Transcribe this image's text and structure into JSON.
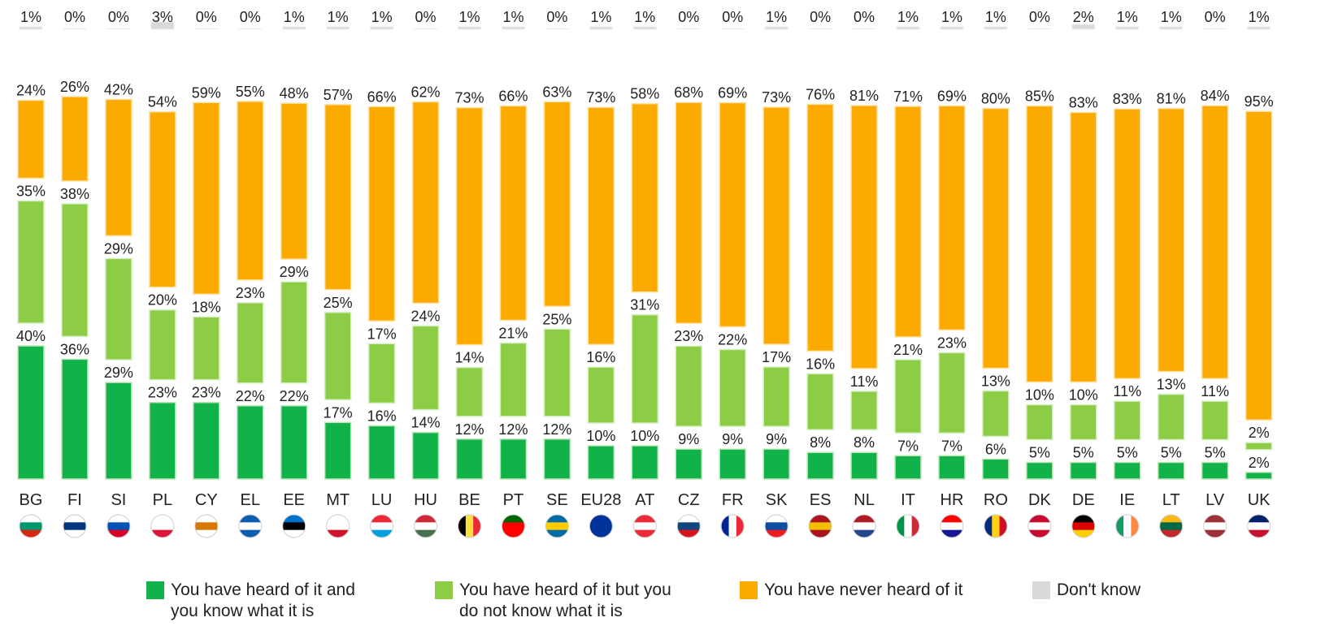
{
  "chart_data": {
    "type": "bar",
    "stacked": false,
    "categories": [
      "BG",
      "FI",
      "SI",
      "PL",
      "CY",
      "EL",
      "EE",
      "MT",
      "LU",
      "HU",
      "BE",
      "PT",
      "SE",
      "EU28",
      "AT",
      "CZ",
      "FR",
      "SK",
      "ES",
      "NL",
      "IT",
      "HR",
      "RO",
      "DK",
      "DE",
      "IE",
      "LT",
      "LV",
      "UK"
    ],
    "flags": [
      "bg",
      "fi",
      "si",
      "pl",
      "cy",
      "el",
      "ee",
      "mt",
      "lu",
      "hu",
      "be",
      "pt",
      "se",
      "eu",
      "at",
      "cz",
      "fr",
      "sk",
      "es",
      "nl",
      "it",
      "hr",
      "ro",
      "dk",
      "de",
      "ie",
      "lt",
      "lv",
      "uk"
    ],
    "series": [
      {
        "name": "You have heard of it and you know what it is",
        "color": "#12b24a",
        "values": [
          40,
          36,
          29,
          23,
          23,
          22,
          22,
          17,
          16,
          14,
          12,
          12,
          12,
          10,
          10,
          9,
          9,
          9,
          8,
          8,
          7,
          7,
          6,
          5,
          5,
          5,
          5,
          5,
          2
        ],
        "labels": [
          "40%",
          "36%",
          "29%",
          "23%",
          "23%",
          "22%",
          "22%",
          "17%",
          "16%",
          "14%",
          "12%",
          "12%",
          "12%",
          "10%",
          "10%",
          "9%",
          "9%",
          "9%",
          "8%",
          "8%",
          "7%",
          "7%",
          "6%",
          "5%",
          "5%",
          "5%",
          "5%",
          "5%",
          "2%"
        ]
      },
      {
        "name": "You have heard of it but you do not know what it is",
        "color": "#8dcc45",
        "values": [
          35,
          38,
          29,
          20,
          18,
          23,
          29,
          25,
          17,
          24,
          14,
          21,
          25,
          16,
          31,
          23,
          22,
          17,
          16,
          11,
          21,
          23,
          13,
          10,
          10,
          11,
          13,
          11,
          2
        ],
        "labels": [
          "35%",
          "38%",
          "29%",
          "20%",
          "18%",
          "23%",
          "29%",
          "25%",
          "17%",
          "24%",
          "14%",
          "21%",
          "25%",
          "16%",
          "31%",
          "23%",
          "22%",
          "17%",
          "16%",
          "11%",
          "21%",
          "23%",
          "13%",
          "10%",
          "10%",
          "11%",
          "13%",
          "11%",
          "2%"
        ]
      },
      {
        "name": "You have never heard of it",
        "color": "#fbab00",
        "values": [
          24,
          26,
          42,
          54,
          59,
          55,
          48,
          57,
          66,
          62,
          73,
          66,
          63,
          73,
          58,
          68,
          69,
          73,
          76,
          81,
          71,
          69,
          80,
          85,
          83,
          83,
          81,
          84,
          95
        ],
        "labels": [
          "24%",
          "26%",
          "42%",
          "54%",
          "59%",
          "55%",
          "48%",
          "57%",
          "66%",
          "62%",
          "73%",
          "66%",
          "63%",
          "73%",
          "58%",
          "68%",
          "69%",
          "73%",
          "76%",
          "81%",
          "71%",
          "69%",
          "80%",
          "85%",
          "83%",
          "83%",
          "81%",
          "84%",
          "95%"
        ]
      },
      {
        "name": "Don't know",
        "color": "#d9d9d9",
        "values": [
          1,
          0,
          0,
          3,
          0,
          0,
          1,
          1,
          1,
          0,
          1,
          1,
          0,
          1,
          1,
          0,
          0,
          1,
          0,
          0,
          1,
          1,
          1,
          0,
          2,
          1,
          1,
          0,
          1
        ],
        "labels": [
          "1%",
          "0%",
          "0%",
          "3%",
          "0%",
          "0%",
          "1%",
          "1%",
          "1%",
          "0%",
          "1%",
          "1%",
          "0%",
          "1%",
          "1%",
          "0%",
          "0%",
          "1%",
          "0%",
          "0%",
          "1%",
          "1%",
          "1%",
          "0%",
          "2%",
          "1%",
          "1%",
          "0%",
          "1%"
        ]
      }
    ],
    "title": "",
    "xlabel": "",
    "ylabel": "",
    "ylim": [
      0,
      100
    ],
    "grid": false,
    "legend_position": "bottom"
  },
  "legend": [
    {
      "text": "You have heard of it and\nyou know what it is",
      "color": "#12b24a"
    },
    {
      "text": "You have heard of it but you\ndo not know what it is",
      "color": "#8dcc45"
    },
    {
      "text": "You have never heard of it",
      "color": "#fbab00"
    },
    {
      "text": "Don't know",
      "color": "#d9d9d9"
    }
  ]
}
